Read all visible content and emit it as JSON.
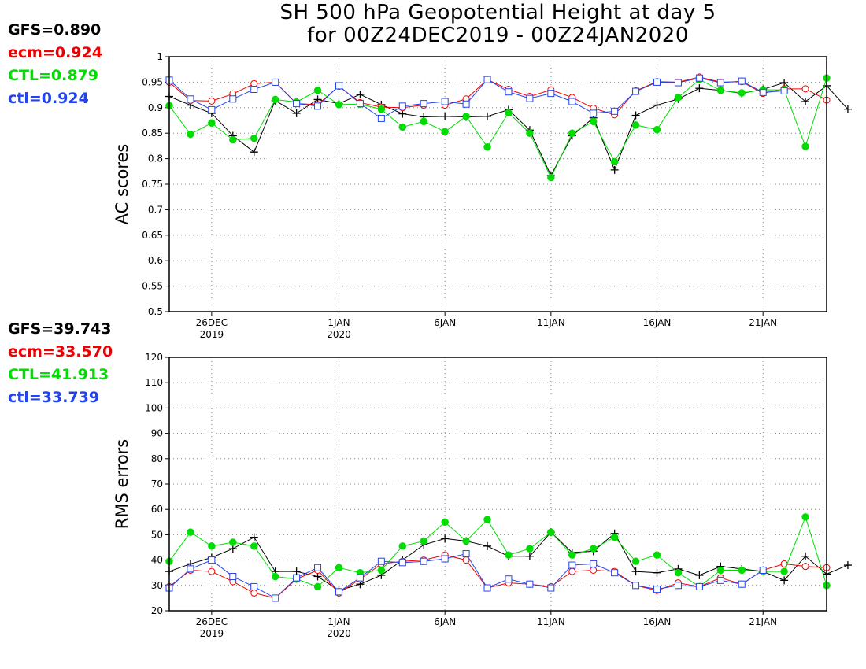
{
  "title_line1": "SH 500 hPa Geopotential Height at day 5",
  "title_line2": "for 00Z24DEC2019 - 00Z24JAN2020",
  "colors": {
    "GFS": "#000000",
    "ecm": "#ee0000",
    "CTL": "#00dd00",
    "ctl": "#2244ee",
    "grid": "#888888"
  },
  "ac_stats": [
    {
      "key": "GFS",
      "text": "GFS=0.890"
    },
    {
      "key": "ecm",
      "text": "ecm=0.924"
    },
    {
      "key": "CTL",
      "text": "CTL=0.879"
    },
    {
      "key": "ctl",
      "text": "ctl=0.924"
    }
  ],
  "rms_stats": [
    {
      "key": "GFS",
      "text": "GFS=39.743"
    },
    {
      "key": "ecm",
      "text": "ecm=33.570"
    },
    {
      "key": "CTL",
      "text": "CTL=41.913"
    },
    {
      "key": "ctl",
      "text": "ctl=33.739"
    }
  ],
  "chart_data": [
    {
      "type": "line",
      "ylabel": "AC scores",
      "ylim": [
        0.5,
        1
      ],
      "yticks": [
        "0.5",
        "0.55",
        "0.6",
        "0.65",
        "0.7",
        "0.75",
        "0.8",
        "0.85",
        "0.9",
        "0.95",
        "1"
      ],
      "x_day_range": [
        -2,
        29
      ],
      "xticks": [
        {
          "day": 0,
          "line1": "26DEC",
          "line2": "2019"
        },
        {
          "day": 6,
          "line1": "1JAN",
          "line2": "2020"
        },
        {
          "day": 11,
          "line1": "6JAN",
          "line2": ""
        },
        {
          "day": 16,
          "line1": "11JAN",
          "line2": ""
        },
        {
          "day": 21,
          "line1": "16JAN",
          "line2": ""
        },
        {
          "day": 26,
          "line1": "21JAN",
          "line2": ""
        }
      ],
      "grid": true,
      "series": [
        {
          "key": "GFS",
          "marker": "plus",
          "start_day": -2,
          "values": [
            0.922,
            0.905,
            0.889,
            0.845,
            0.813,
            0.914,
            0.889,
            0.916,
            0.908,
            0.926,
            0.906,
            0.888,
            0.882,
            0.883,
            0.882,
            0.883,
            0.896,
            0.856,
            0.767,
            0.845,
            0.88,
            0.778,
            0.885,
            0.905,
            0.917,
            0.938,
            0.934,
            0.928,
            0.936,
            0.949,
            0.912,
            0.943,
            0.897
          ]
        },
        {
          "key": "ecm",
          "marker": "circle",
          "start_day": -2,
          "values": [
            0.95,
            0.914,
            0.913,
            0.927,
            0.947,
            0.95,
            0.908,
            0.906,
            0.942,
            0.91,
            0.901,
            0.9,
            0.905,
            0.905,
            0.917,
            0.955,
            0.936,
            0.922,
            0.935,
            0.92,
            0.899,
            0.886,
            0.933,
            0.951,
            0.95,
            0.96,
            0.95,
            0.951,
            0.928,
            0.937,
            0.937,
            0.915
          ]
        },
        {
          "key": "CTL",
          "marker": "dot",
          "start_day": -2,
          "values": [
            0.904,
            0.848,
            0.87,
            0.837,
            0.84,
            0.916,
            0.911,
            0.934,
            0.906,
            0.907,
            0.897,
            0.862,
            0.873,
            0.853,
            0.883,
            0.823,
            0.89,
            0.85,
            0.763,
            0.85,
            0.873,
            0.794,
            0.866,
            0.857,
            0.92,
            0.955,
            0.934,
            0.929,
            0.935,
            0.935,
            0.824,
            0.958
          ]
        },
        {
          "key": "ctl",
          "marker": "square",
          "start_day": -2,
          "values": [
            0.954,
            0.917,
            0.896,
            0.917,
            0.936,
            0.95,
            0.908,
            0.903,
            0.943,
            0.908,
            0.879,
            0.903,
            0.908,
            0.912,
            0.907,
            0.955,
            0.931,
            0.918,
            0.928,
            0.912,
            0.889,
            0.893,
            0.932,
            0.95,
            0.949,
            0.958,
            0.949,
            0.952,
            0.93,
            0.933
          ]
        }
      ]
    },
    {
      "type": "line",
      "ylabel": "RMS errors",
      "ylim": [
        20,
        120
      ],
      "yticks": [
        "20",
        "30",
        "40",
        "50",
        "60",
        "70",
        "80",
        "90",
        "100",
        "110",
        "120"
      ],
      "x_day_range": [
        -2,
        29
      ],
      "xticks": [
        {
          "day": 0,
          "line1": "26DEC",
          "line2": "2019"
        },
        {
          "day": 6,
          "line1": "1JAN",
          "line2": "2020"
        },
        {
          "day": 11,
          "line1": "6JAN",
          "line2": ""
        },
        {
          "day": 16,
          "line1": "11JAN",
          "line2": ""
        },
        {
          "day": 21,
          "line1": "16JAN",
          "line2": ""
        },
        {
          "day": 26,
          "line1": "21JAN",
          "line2": ""
        }
      ],
      "grid": true,
      "series": [
        {
          "key": "GFS",
          "marker": "plus",
          "start_day": -2,
          "values": [
            35.5,
            38.5,
            41.0,
            44.5,
            49.0,
            35.5,
            35.5,
            33.5,
            28.0,
            30.5,
            34.0,
            40.0,
            46.0,
            48.5,
            47.5,
            45.5,
            41.5,
            41.5,
            51.0,
            43.0,
            43.5,
            50.5,
            35.5,
            35.0,
            36.5,
            34.0,
            37.5,
            36.5,
            35.5,
            32.0,
            41.5,
            34.5,
            38.0
          ]
        },
        {
          "key": "ecm",
          "marker": "circle",
          "start_day": -2,
          "values": [
            29.5,
            36.0,
            35.5,
            31.5,
            27.0,
            25.0,
            32.5,
            36.0,
            27.0,
            32.5,
            38.5,
            39.5,
            40.0,
            42.0,
            40.0,
            29.0,
            31.0,
            30.5,
            29.5,
            35.5,
            36.0,
            35.5,
            30.0,
            28.0,
            31.0,
            29.5,
            33.0,
            30.5,
            36.0,
            38.5,
            37.5,
            37.0
          ]
        },
        {
          "key": "CTL",
          "marker": "dot",
          "start_day": -2,
          "values": [
            39.5,
            51.0,
            45.5,
            47.0,
            45.5,
            33.5,
            32.5,
            29.5,
            37.0,
            35.0,
            36.0,
            45.5,
            47.5,
            55.0,
            47.5,
            56.0,
            42.0,
            44.5,
            51.0,
            42.0,
            44.5,
            49.0,
            39.5,
            42.0,
            35.0,
            29.5,
            36.0,
            36.0,
            35.5,
            35.5,
            57.0,
            30.0
          ]
        },
        {
          "key": "ctl",
          "marker": "square",
          "start_day": -2,
          "values": [
            29.0,
            36.5,
            40.0,
            33.5,
            29.5,
            25.0,
            33.0,
            37.0,
            27.5,
            33.0,
            39.5,
            39.0,
            39.5,
            40.5,
            42.5,
            29.0,
            32.5,
            30.5,
            29.0,
            38.0,
            38.5,
            35.0,
            30.0,
            28.5,
            30.0,
            29.5,
            32.0,
            30.5,
            36.0
          ]
        }
      ]
    }
  ]
}
